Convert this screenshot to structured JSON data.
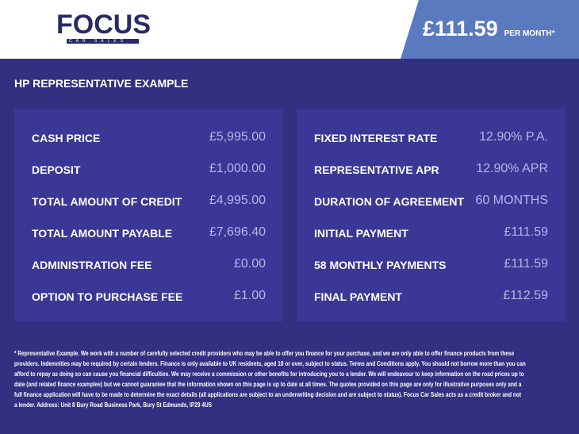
{
  "header": {
    "logo_text": "FOCUS",
    "logo_subtext": "CAR SALES",
    "monthly_price": "£111.59",
    "per_month_label": "PER MONTH*"
  },
  "section_title": "HP REPRESENTATIVE EXAMPLE",
  "left_panel": [
    {
      "label": "CASH PRICE",
      "value": "£5,995.00"
    },
    {
      "label": "DEPOSIT",
      "value": "£1,000.00"
    },
    {
      "label": "TOTAL AMOUNT OF CREDIT",
      "value": "£4,995.00"
    },
    {
      "label": "TOTAL AMOUNT PAYABLE",
      "value": "£7,696.40"
    },
    {
      "label": "ADMINISTRATION FEE",
      "value": "£0.00"
    },
    {
      "label": "OPTION TO PURCHASE FEE",
      "value": "£1.00"
    }
  ],
  "right_panel": [
    {
      "label": "FIXED INTEREST RATE",
      "value": "12.90% P.A."
    },
    {
      "label": "REPRESENTATIVE APR",
      "value": "12.90% APR"
    },
    {
      "label": "DURATION OF AGREEMENT",
      "value": "60 MONTHS"
    },
    {
      "label": "INITIAL PAYMENT",
      "value": "£111.59"
    },
    {
      "label": "58 MONTHLY PAYMENTS",
      "value": "£111.59"
    },
    {
      "label": "FINAL PAYMENT",
      "value": "£112.59"
    }
  ],
  "footnote": [
    "* Representative Example. We work with a number of carefully selected credit providers who may be able to offer you finance for your purchase, and we are only able to offer finance products from these",
    "providers. Indemnities may be required by certain lenders. Finance is only available to UK residents, aged 18 or over, subject to status. Terms and Conditions apply. You should not borrow more than you can",
    "afford to repay as doing so can cause you financial difficulties. We may receive a commission or other benefits for introducing you to a lender. We will endeavour to keep information on the road prices up to",
    "date (and related finance examples) but we cannot guarantee that the information shown on this page is up to date at all times. The quotes provided on this page are only for illustrative purposes only and a",
    "full finance application will have to be made to determine the exact details (all applications are subject to an underwriting decision and are subject to status). Focus Car Sales acts as a credit broker and not",
    "a lender. Address: Unit 8 Bury Road Business Park, Bury St Edmunds, IP29 4US"
  ],
  "colors": {
    "header_bg": "#ffffff",
    "price_panel": "#5b79bf",
    "body_bg": "#332f81",
    "panel_bg": "#3a3796",
    "value_text": "#b8b5e8",
    "logo": "#2a2a66"
  }
}
